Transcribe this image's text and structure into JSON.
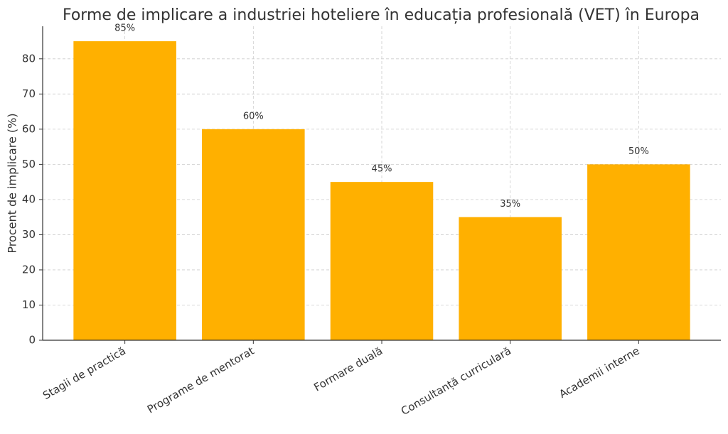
{
  "chart_data": {
    "type": "bar",
    "title": "Forme de implicare a industriei hoteliere în educația profesională (VET) în Europa",
    "y_label": "Procent de implicare (%)",
    "categories": [
      "Stagii de practică",
      "Programe de mentorat",
      "Formare duală",
      "Consultanță curriculară",
      "Academii interne"
    ],
    "values": [
      85,
      60,
      45,
      35,
      50
    ],
    "value_labels": [
      "85%",
      "60%",
      "45%",
      "35%",
      "50%"
    ],
    "color": "#ffb000",
    "ylim": [
      0,
      89.25
    ],
    "yticks": [
      0,
      10,
      20,
      30,
      40,
      50,
      60,
      70,
      80
    ],
    "grid": true
  }
}
